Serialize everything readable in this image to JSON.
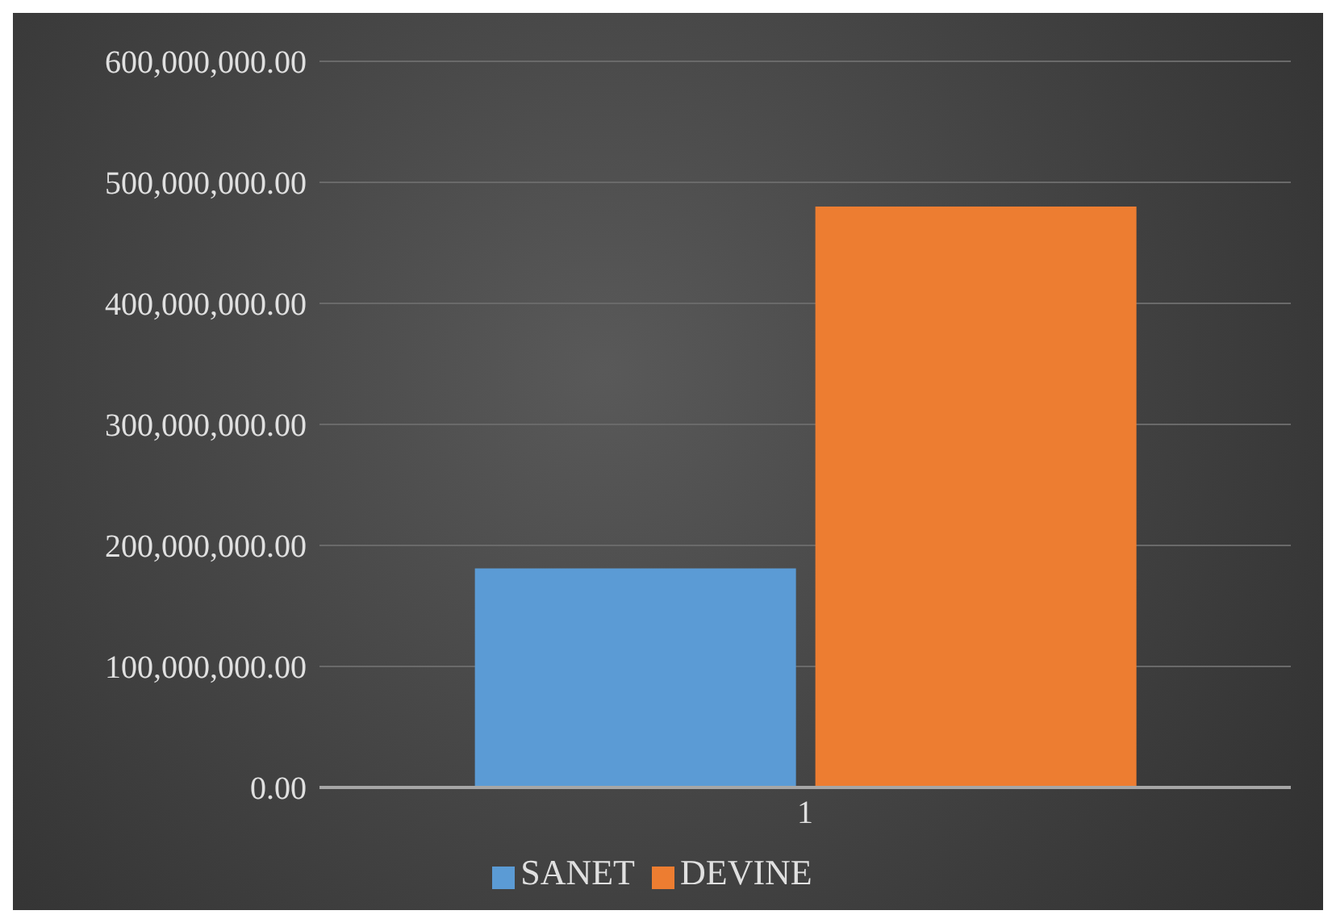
{
  "chart_data": {
    "type": "bar",
    "categories": [
      "1"
    ],
    "series": [
      {
        "name": "SANET",
        "color": "#5b9bd5",
        "values": [
          181000000
        ]
      },
      {
        "name": "DEVINE",
        "color": "#ed7d31",
        "values": [
          480000000
        ]
      }
    ],
    "ylim": [
      0,
      600000000
    ],
    "yticks": [
      {
        "value": 0,
        "label": "0.00"
      },
      {
        "value": 100000000,
        "label": "100,000,000.00"
      },
      {
        "value": 200000000,
        "label": "200,000,000.00"
      },
      {
        "value": 300000000,
        "label": "300,000,000.00"
      },
      {
        "value": 400000000,
        "label": "400,000,000.00"
      },
      {
        "value": 500000000,
        "label": "500,000,000.00"
      },
      {
        "value": 600000000,
        "label": "600,000,000.00"
      }
    ],
    "grid": "y",
    "legend": "bottom"
  }
}
